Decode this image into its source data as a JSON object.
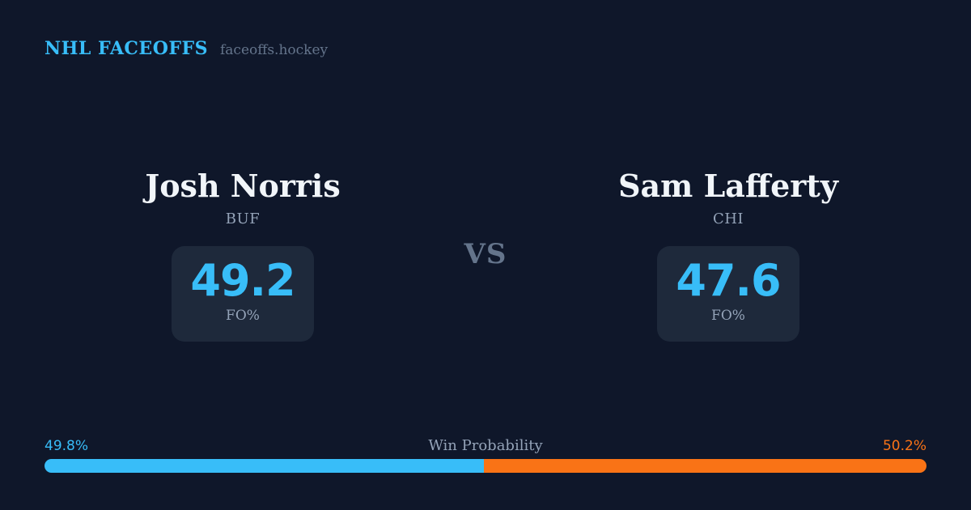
{
  "header": {
    "brand": "NHL FACEOFFS",
    "site": "faceoffs.hockey"
  },
  "matchup": {
    "vs_label": "VS",
    "players": [
      {
        "name": "Josh Norris",
        "team": "BUF",
        "stat_value": "49.2",
        "stat_label": "FO%"
      },
      {
        "name": "Sam Lafferty",
        "team": "CHI",
        "stat_value": "47.6",
        "stat_label": "FO%"
      }
    ]
  },
  "win_probability": {
    "title": "Win Probability",
    "left_pct_label": "49.8%",
    "right_pct_label": "50.2%",
    "left_value": 49.8,
    "right_value": 50.2
  },
  "colors": {
    "background": "#0f172a",
    "card": "#1e293b",
    "accent_blue": "#38bdf8",
    "accent_orange": "#f97316",
    "text_primary": "#f1f5f9",
    "text_muted": "#94a3b8",
    "text_dim": "#64748b"
  }
}
